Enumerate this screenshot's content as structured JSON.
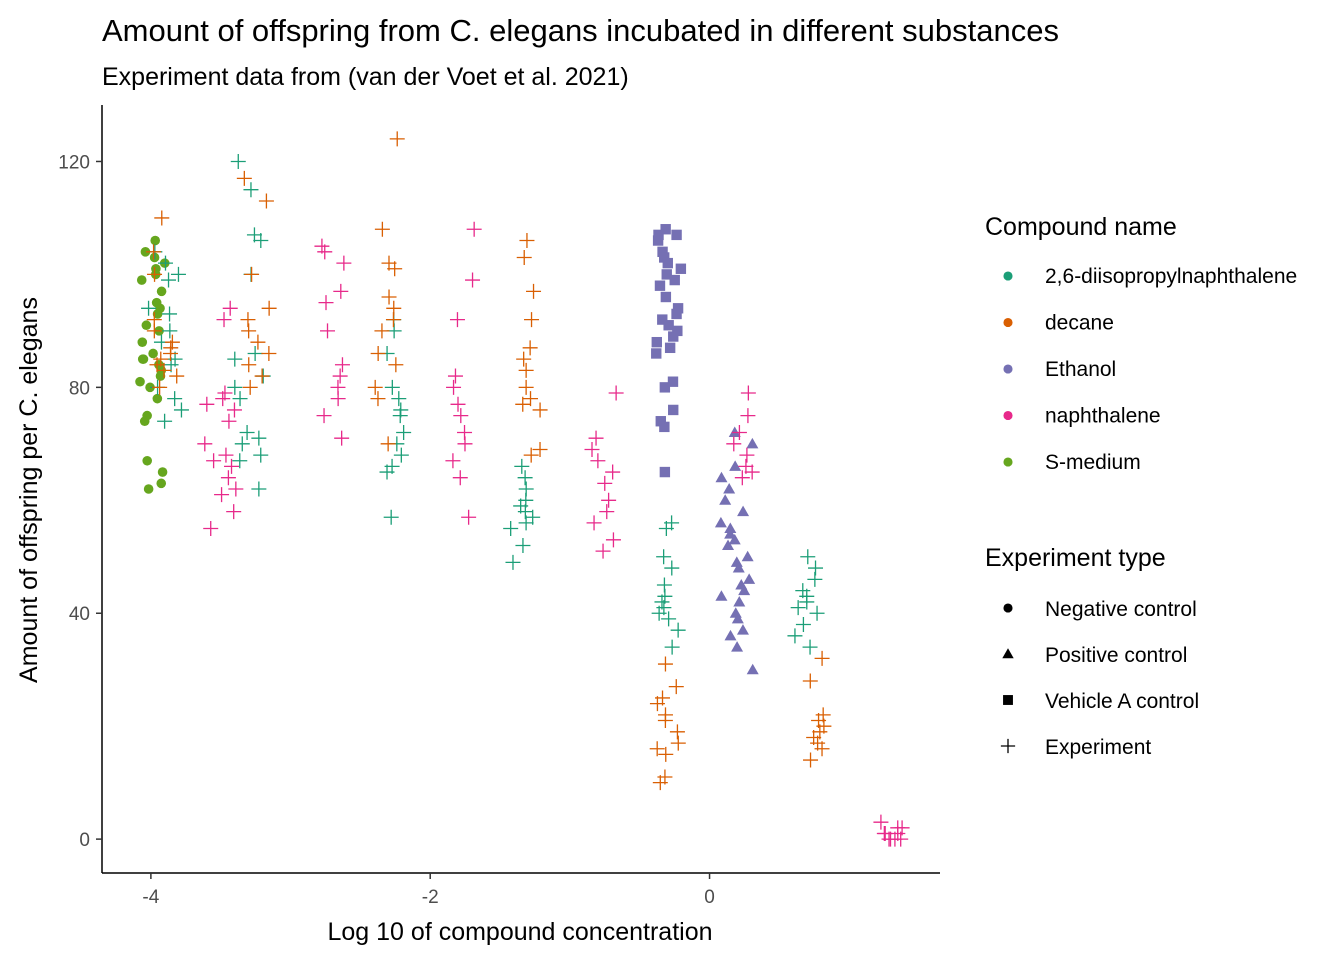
{
  "chart_data": {
    "type": "scatter",
    "title": "Amount of offspring from C. elegans incubated in different substances",
    "subtitle": "Experiment data from (van der Voet et al. 2021)",
    "xlabel": "Log 10 of compound concentration",
    "ylabel": "Amount of offspring per C. elegans",
    "xlim": [
      -4.35,
      1.65
    ],
    "ylim": [
      -6,
      130
    ],
    "x_ticks": [
      -4,
      -2,
      0
    ],
    "x_tick_labels": [
      "-4",
      "-2",
      "0"
    ],
    "y_ticks": [
      0,
      40,
      80,
      120
    ],
    "y_tick_labels": [
      "0",
      "40",
      "80",
      "120"
    ],
    "grid": false,
    "legend_position": "right",
    "compound_legend": {
      "title": "Compound name",
      "entries": [
        {
          "label": "2,6-diisopropylnaphthalene",
          "color": "#1b9e77"
        },
        {
          "label": "decane",
          "color": "#d95f02"
        },
        {
          "label": "Ethanol",
          "color": "#7570b3"
        },
        {
          "label": "naphthalene",
          "color": "#e7298a"
        },
        {
          "label": "S-medium",
          "color": "#66a61e"
        }
      ]
    },
    "type_legend": {
      "title": "Experiment type",
      "entries": [
        {
          "label": "Negative control",
          "shape": "circle"
        },
        {
          "label": "Positive control",
          "shape": "triangle"
        },
        {
          "label": "Vehicle A control",
          "shape": "square"
        },
        {
          "label": "Experiment",
          "shape": "plus"
        }
      ]
    },
    "series": [
      {
        "compound": "S-medium",
        "exp_type": "Negative control",
        "center": -4.0,
        "spread": 0.1,
        "y": [
          106,
          104,
          103,
          102,
          101,
          100,
          99,
          97,
          95,
          94,
          93,
          91,
          90,
          88,
          86,
          85,
          85,
          84,
          83,
          82,
          81,
          80,
          78,
          75,
          74,
          67,
          65,
          63,
          62
        ]
      },
      {
        "compound": "Ethanol",
        "exp_type": "Vehicle A control",
        "center": -0.3,
        "spread": 0.1,
        "y": [
          108,
          107,
          107,
          106,
          104,
          103,
          102,
          101,
          100,
          99,
          98,
          96,
          94,
          93,
          92,
          91,
          90,
          89,
          88,
          87,
          86,
          81,
          80,
          76,
          74,
          73,
          65
        ]
      },
      {
        "compound": "Ethanol",
        "exp_type": "Positive control",
        "center": 0.2,
        "spread": 0.12,
        "y": [
          72,
          70,
          66,
          64,
          62,
          60,
          58,
          56,
          55,
          54,
          53,
          52,
          50,
          49,
          48,
          46,
          45,
          44,
          43,
          42,
          40,
          39,
          37,
          36,
          34,
          30
        ]
      },
      {
        "compound": "2,6-diisopropylnaphthalene",
        "exp_type": "Experiment",
        "center": -3.9,
        "spread": 0.12,
        "y": [
          104,
          102,
          100,
          99,
          94,
          93,
          90,
          88,
          85,
          84,
          80,
          78,
          76,
          74
        ]
      },
      {
        "compound": "2,6-diisopropylnaphthalene",
        "exp_type": "Experiment",
        "center": -3.3,
        "spread": 0.12,
        "y": [
          120,
          115,
          107,
          106,
          100,
          86,
          85,
          82,
          80,
          78,
          72,
          71,
          70,
          68,
          67,
          62
        ]
      },
      {
        "compound": "2,6-diisopropylnaphthalene",
        "exp_type": "Experiment",
        "center": -2.25,
        "spread": 0.06,
        "y": [
          92,
          90,
          86,
          80,
          78,
          76,
          75,
          72,
          70,
          68,
          66,
          65,
          57
        ]
      },
      {
        "compound": "2,6-diisopropylnaphthalene",
        "exp_type": "Experiment",
        "center": -1.35,
        "spread": 0.1,
        "y": [
          66,
          64,
          62,
          60,
          59,
          58,
          57,
          56,
          55,
          52,
          49
        ]
      },
      {
        "compound": "2,6-diisopropylnaphthalene",
        "exp_type": "Experiment",
        "center": -0.3,
        "spread": 0.08,
        "y": [
          56,
          55,
          50,
          48,
          45,
          43,
          42,
          41,
          40,
          39,
          37,
          34
        ]
      },
      {
        "compound": "2,6-diisopropylnaphthalene",
        "exp_type": "Experiment",
        "center": 0.7,
        "spread": 0.09,
        "y": [
          50,
          48,
          46,
          44,
          43,
          42,
          41,
          40,
          38,
          36,
          34
        ]
      },
      {
        "compound": "decane",
        "exp_type": "Experiment",
        "center": -3.9,
        "spread": 0.1,
        "y": [
          110,
          104,
          100,
          92,
          90,
          88,
          87,
          86,
          85,
          84,
          83,
          82,
          80
        ]
      },
      {
        "compound": "decane",
        "exp_type": "Experiment",
        "center": -3.25,
        "spread": 0.1,
        "y": [
          117,
          113,
          100,
          94,
          92,
          90,
          88,
          86,
          84,
          82,
          80
        ]
      },
      {
        "compound": "decane",
        "exp_type": "Experiment",
        "center": -2.3,
        "spread": 0.1,
        "y": [
          124,
          108,
          102,
          101,
          96,
          94,
          92,
          90,
          86,
          84,
          80,
          78,
          70
        ]
      },
      {
        "compound": "decane",
        "exp_type": "Experiment",
        "center": -1.3,
        "spread": 0.1,
        "y": [
          106,
          103,
          97,
          92,
          87,
          85,
          83,
          80,
          78,
          77,
          76,
          69,
          68
        ]
      },
      {
        "compound": "decane",
        "exp_type": "Experiment",
        "center": -0.3,
        "spread": 0.08,
        "y": [
          31,
          27,
          25,
          24,
          22,
          21,
          19,
          17,
          16,
          15,
          11,
          10
        ]
      },
      {
        "compound": "decane",
        "exp_type": "Experiment",
        "center": 0.75,
        "spread": 0.07,
        "y": [
          32,
          28,
          22,
          21,
          20,
          19,
          18,
          17,
          16,
          14
        ]
      },
      {
        "compound": "naphthalene",
        "exp_type": "Experiment",
        "center": -3.5,
        "spread": 0.12,
        "y": [
          94,
          92,
          79,
          78,
          77,
          76,
          74,
          70,
          68,
          67,
          66,
          64,
          62,
          61,
          58,
          55
        ]
      },
      {
        "compound": "naphthalene",
        "exp_type": "Experiment",
        "center": -2.7,
        "spread": 0.1,
        "y": [
          105,
          104,
          102,
          97,
          95,
          90,
          84,
          82,
          80,
          78,
          75,
          71
        ]
      },
      {
        "compound": "naphthalene",
        "exp_type": "Experiment",
        "center": -1.75,
        "spread": 0.1,
        "y": [
          108,
          99,
          92,
          82,
          80,
          77,
          75,
          72,
          70,
          67,
          64,
          57
        ]
      },
      {
        "compound": "naphthalene",
        "exp_type": "Experiment",
        "center": -0.75,
        "spread": 0.1,
        "y": [
          79,
          71,
          69,
          67,
          65,
          63,
          60,
          58,
          56,
          53,
          51
        ]
      },
      {
        "compound": "naphthalene",
        "exp_type": "Experiment",
        "center": 0.25,
        "spread": 0.1,
        "y": [
          79,
          75,
          72,
          70,
          68,
          66,
          65,
          64
        ]
      },
      {
        "compound": "naphthalene",
        "exp_type": "Experiment",
        "center": 1.3,
        "spread": 0.08,
        "y": [
          3,
          2,
          2,
          1,
          1,
          1,
          0,
          0,
          0,
          0
        ]
      }
    ]
  }
}
